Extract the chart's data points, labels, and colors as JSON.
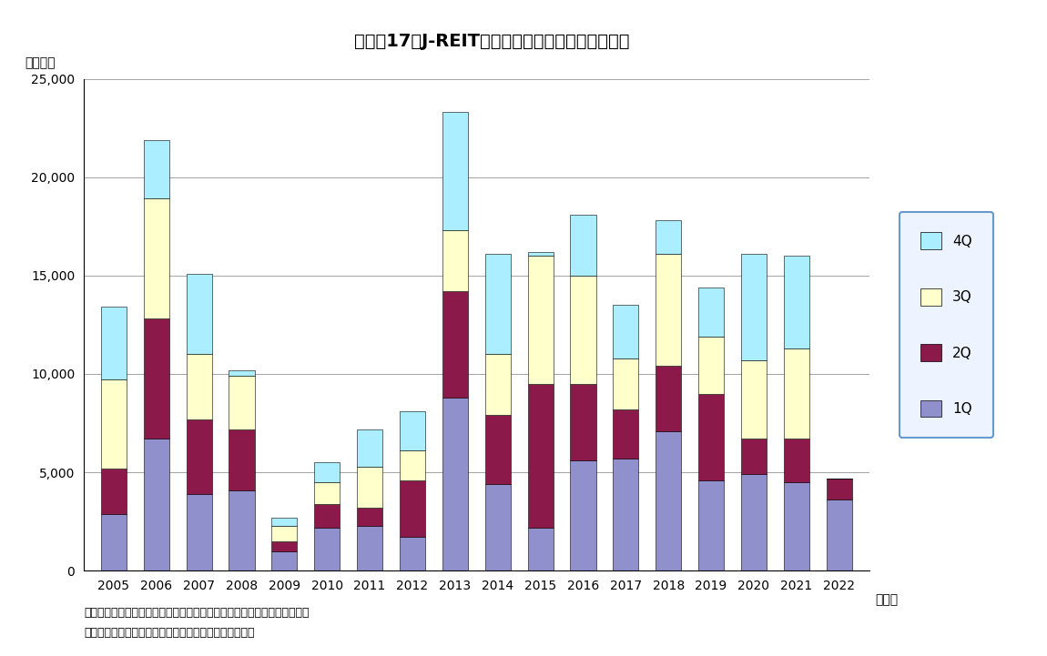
{
  "title": "図表－17　J-REITによる物件取得額（四半期毎）",
  "ylabel": "（億円）",
  "xlabel_suffix": "（年）",
  "years": [
    2005,
    2006,
    2007,
    2008,
    2009,
    2010,
    2011,
    2012,
    2013,
    2014,
    2015,
    2016,
    2017,
    2018,
    2019,
    2020,
    2021,
    2022
  ],
  "q1": [
    2900,
    6700,
    3900,
    4100,
    1000,
    2200,
    2300,
    1700,
    8800,
    4400,
    2200,
    5600,
    5700,
    7100,
    4600,
    4900,
    4500,
    3600
  ],
  "q2": [
    2300,
    6100,
    3800,
    3100,
    500,
    1200,
    900,
    2900,
    5400,
    3500,
    7300,
    3900,
    2500,
    3300,
    4400,
    1800,
    2200,
    1100
  ],
  "q3": [
    4500,
    6100,
    3300,
    2700,
    800,
    1100,
    2100,
    1500,
    3100,
    3100,
    6500,
    5500,
    2600,
    5700,
    2900,
    4000,
    4600,
    0
  ],
  "q4": [
    3700,
    3000,
    4100,
    300,
    400,
    1000,
    1900,
    2000,
    6000,
    5100,
    200,
    3100,
    2700,
    1700,
    2500,
    5400,
    4700,
    0
  ],
  "colors": {
    "1Q": "#9090CC",
    "2Q": "#8B1A4A",
    "3Q": "#FFFFCC",
    "4Q": "#AAEEFF"
  },
  "ylim": [
    0,
    25000
  ],
  "yticks": [
    0,
    5000,
    10000,
    15000,
    20000,
    25000
  ],
  "background_color": "#ffffff",
  "note1": "（注）引渡しベース。新規上場以前の取得物件は上場日に取得したと想定",
  "note2": "（出所）開示データをもとにニッセイ基礎研究所が作成"
}
